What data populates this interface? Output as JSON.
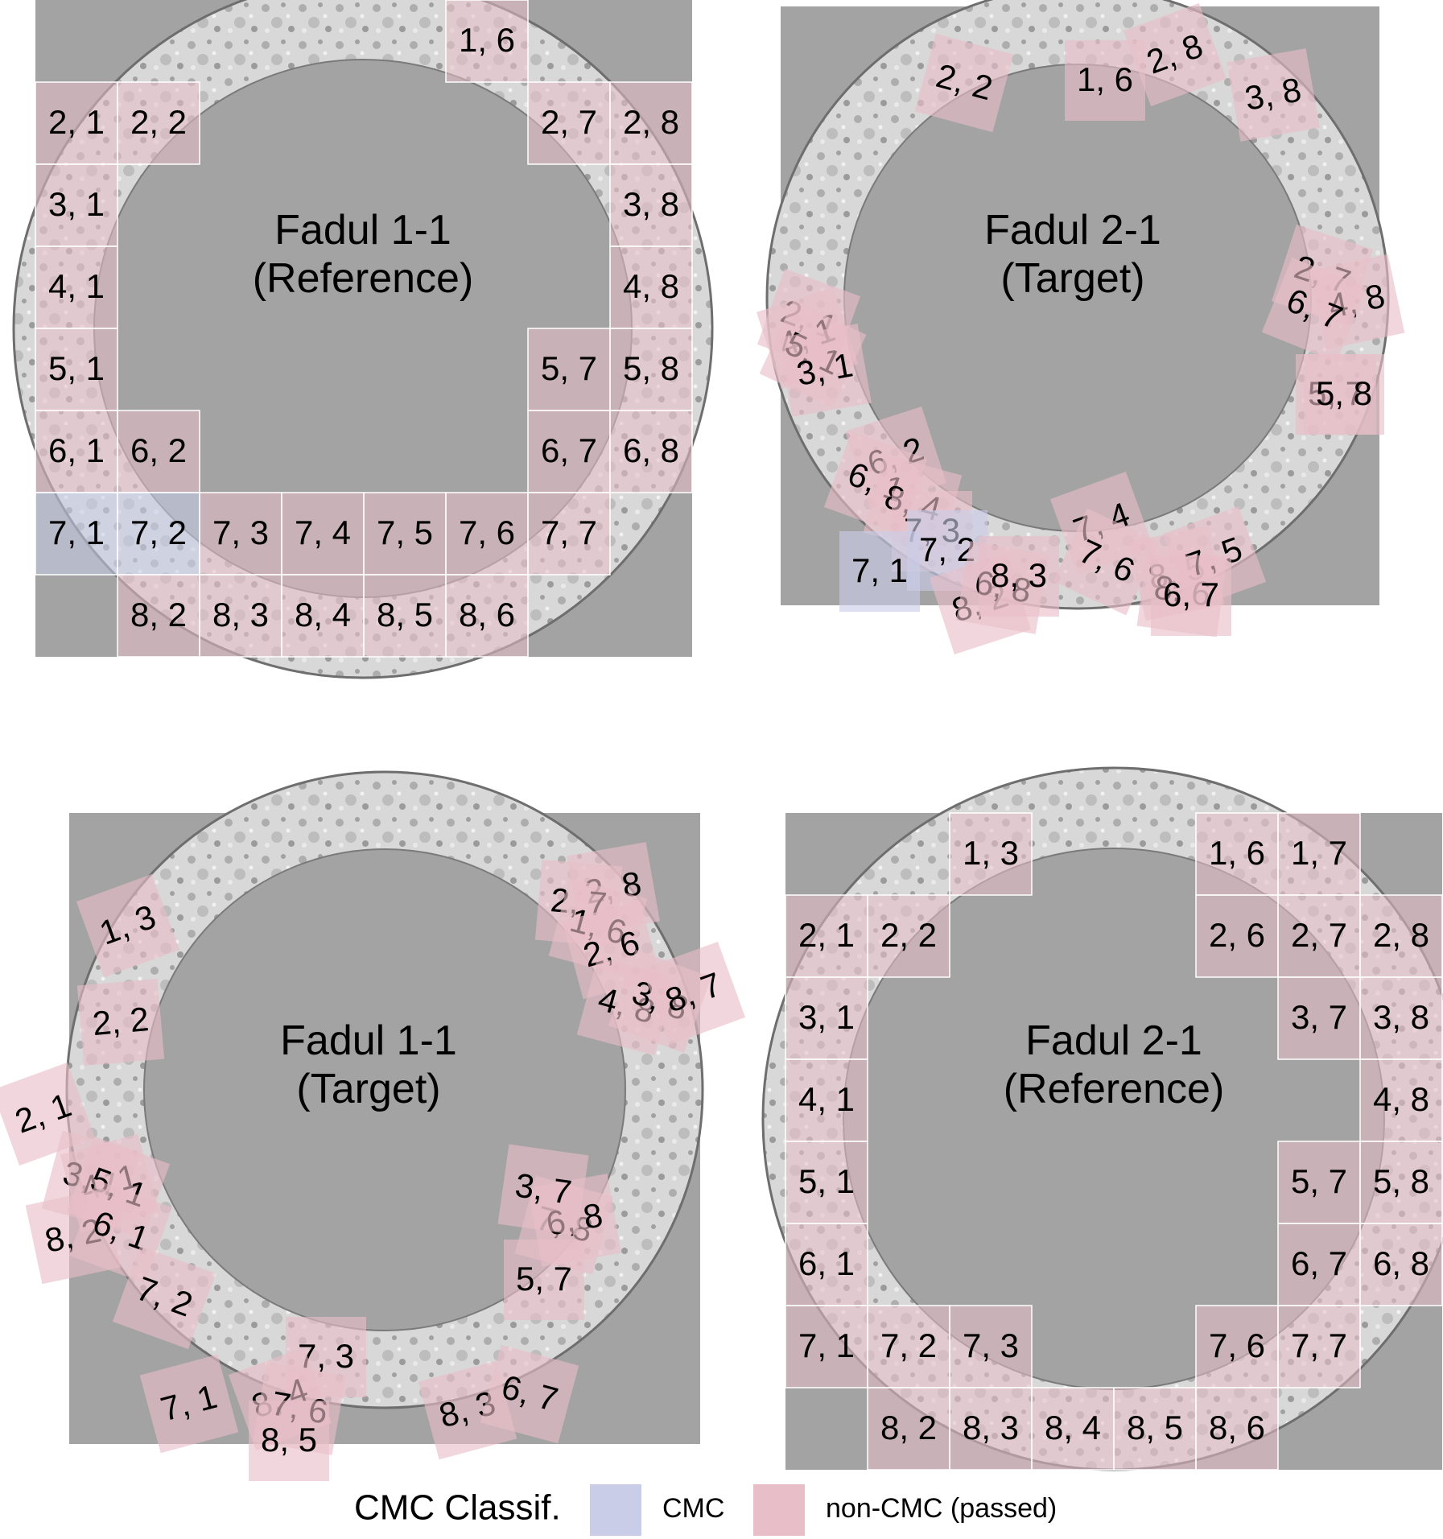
{
  "colors": {
    "background": "#a3a3a3",
    "cmc": "#c9cde8",
    "non_cmc": "#e8bfc8",
    "ring_light": "#dcdcdc",
    "ring_dark": "#6e6e6e",
    "cell_border": "#ffffff"
  },
  "panels": [
    {
      "id": "p1",
      "title_line1": "Fadul 1-1",
      "title_line2": "(Reference)",
      "type": "grid",
      "cells": [
        {
          "label": "1, 6",
          "class": "non-CMC",
          "row": 1,
          "col": 6
        },
        {
          "label": "2, 1",
          "class": "non-CMC",
          "row": 2,
          "col": 1
        },
        {
          "label": "2, 2",
          "class": "non-CMC",
          "row": 2,
          "col": 2
        },
        {
          "label": "2, 7",
          "class": "non-CMC",
          "row": 2,
          "col": 7
        },
        {
          "label": "2, 8",
          "class": "non-CMC",
          "row": 2,
          "col": 8
        },
        {
          "label": "3, 1",
          "class": "non-CMC",
          "row": 3,
          "col": 1
        },
        {
          "label": "3, 8",
          "class": "non-CMC",
          "row": 3,
          "col": 8
        },
        {
          "label": "4, 1",
          "class": "non-CMC",
          "row": 4,
          "col": 1
        },
        {
          "label": "4, 8",
          "class": "non-CMC",
          "row": 4,
          "col": 8
        },
        {
          "label": "5, 1",
          "class": "non-CMC",
          "row": 5,
          "col": 1
        },
        {
          "label": "5, 7",
          "class": "non-CMC",
          "row": 5,
          "col": 7
        },
        {
          "label": "5, 8",
          "class": "non-CMC",
          "row": 5,
          "col": 8
        },
        {
          "label": "6, 1",
          "class": "non-CMC",
          "row": 6,
          "col": 1
        },
        {
          "label": "6, 2",
          "class": "non-CMC",
          "row": 6,
          "col": 2
        },
        {
          "label": "6, 7",
          "class": "non-CMC",
          "row": 6,
          "col": 7
        },
        {
          "label": "6, 8",
          "class": "non-CMC",
          "row": 6,
          "col": 8
        },
        {
          "label": "7, 1",
          "class": "CMC",
          "row": 7,
          "col": 1
        },
        {
          "label": "7, 2",
          "class": "CMC",
          "row": 7,
          "col": 2
        },
        {
          "label": "7, 3",
          "class": "non-CMC",
          "row": 7,
          "col": 3
        },
        {
          "label": "7, 4",
          "class": "non-CMC",
          "row": 7,
          "col": 4
        },
        {
          "label": "7, 5",
          "class": "non-CMC",
          "row": 7,
          "col": 5
        },
        {
          "label": "7, 6",
          "class": "non-CMC",
          "row": 7,
          "col": 6
        },
        {
          "label": "7, 7",
          "class": "non-CMC",
          "row": 7,
          "col": 7
        },
        {
          "label": "8, 2",
          "class": "non-CMC",
          "row": 8,
          "col": 2
        },
        {
          "label": "8, 3",
          "class": "non-CMC",
          "row": 8,
          "col": 3
        },
        {
          "label": "8, 4",
          "class": "non-CMC",
          "row": 8,
          "col": 4
        },
        {
          "label": "8, 5",
          "class": "non-CMC",
          "row": 8,
          "col": 5
        },
        {
          "label": "8, 6",
          "class": "non-CMC",
          "row": 8,
          "col": 6
        }
      ]
    },
    {
      "id": "p2",
      "title_line1": "Fadul 2-1",
      "title_line2": "(Target)",
      "type": "scattered",
      "cells": [
        {
          "label": "2, 2",
          "class": "non-CMC"
        },
        {
          "label": "1, 6",
          "class": "non-CMC"
        },
        {
          "label": "2, 8",
          "class": "non-CMC"
        },
        {
          "label": "3, 8",
          "class": "non-CMC"
        },
        {
          "label": "2, 7",
          "class": "non-CMC"
        },
        {
          "label": "4, 8",
          "class": "non-CMC"
        },
        {
          "label": "5, 7",
          "class": "non-CMC"
        },
        {
          "label": "5, 8",
          "class": "non-CMC"
        },
        {
          "label": "6, 7",
          "class": "non-CMC"
        },
        {
          "label": "2, 1",
          "class": "non-CMC"
        },
        {
          "label": "4, 1",
          "class": "non-CMC"
        },
        {
          "label": "5, 1",
          "class": "non-CMC"
        },
        {
          "label": "3, 1",
          "class": "non-CMC"
        },
        {
          "label": "6, 2",
          "class": "non-CMC"
        },
        {
          "label": "6, 1",
          "class": "non-CMC"
        },
        {
          "label": "8, 4",
          "class": "non-CMC"
        },
        {
          "label": "7, 3",
          "class": "non-CMC"
        },
        {
          "label": "7, 1",
          "class": "CMC"
        },
        {
          "label": "7, 2",
          "class": "CMC"
        },
        {
          "label": "8, 2",
          "class": "non-CMC"
        },
        {
          "label": "6, 8",
          "class": "non-CMC"
        },
        {
          "label": "8, 3",
          "class": "non-CMC"
        },
        {
          "label": "7, 4",
          "class": "non-CMC"
        },
        {
          "label": "7, 6",
          "class": "non-CMC"
        },
        {
          "label": "8, 5",
          "class": "non-CMC"
        },
        {
          "label": "8, 6",
          "class": "non-CMC"
        },
        {
          "label": "7, 5",
          "class": "non-CMC"
        },
        {
          "label": "6, 7",
          "class": "non-CMC"
        }
      ]
    },
    {
      "id": "p3",
      "title_line1": "Fadul 1-1",
      "title_line2": "(Target)",
      "type": "scattered",
      "cells": [
        {
          "label": "1, 3",
          "class": "non-CMC"
        },
        {
          "label": "2, 2",
          "class": "non-CMC"
        },
        {
          "label": "2, 1",
          "class": "non-CMC"
        },
        {
          "label": "3, 1",
          "class": "non-CMC"
        },
        {
          "label": "4, 1",
          "class": "non-CMC"
        },
        {
          "label": "5, 1",
          "class": "non-CMC"
        },
        {
          "label": "8, 2",
          "class": "non-CMC"
        },
        {
          "label": "6, 1",
          "class": "non-CMC"
        },
        {
          "label": "7, 2",
          "class": "non-CMC"
        },
        {
          "label": "7, 1",
          "class": "non-CMC"
        },
        {
          "label": "7, 3",
          "class": "non-CMC"
        },
        {
          "label": "8, 4",
          "class": "non-CMC"
        },
        {
          "label": "7, 6",
          "class": "non-CMC"
        },
        {
          "label": "8, 5",
          "class": "non-CMC"
        },
        {
          "label": "8, 3",
          "class": "non-CMC"
        },
        {
          "label": "6, 7",
          "class": "non-CMC"
        },
        {
          "label": "5, 7",
          "class": "non-CMC"
        },
        {
          "label": "7, 8",
          "class": "non-CMC"
        },
        {
          "label": "6, 8",
          "class": "non-CMC"
        },
        {
          "label": "3, 7",
          "class": "non-CMC"
        },
        {
          "label": "2, 8",
          "class": "non-CMC"
        },
        {
          "label": "2, 7",
          "class": "non-CMC"
        },
        {
          "label": "1, 6",
          "class": "non-CMC"
        },
        {
          "label": "2, 6",
          "class": "non-CMC"
        },
        {
          "label": "4, 8",
          "class": "non-CMC"
        },
        {
          "label": "3, 8",
          "class": "non-CMC"
        },
        {
          "label": "8, 7",
          "class": "non-CMC"
        }
      ]
    },
    {
      "id": "p4",
      "title_line1": "Fadul 2-1",
      "title_line2": "(Reference)",
      "type": "grid",
      "cells": [
        {
          "label": "1, 3",
          "class": "non-CMC",
          "row": 1,
          "col": 3
        },
        {
          "label": "1, 6",
          "class": "non-CMC",
          "row": 1,
          "col": 6
        },
        {
          "label": "1, 7",
          "class": "non-CMC",
          "row": 1,
          "col": 7
        },
        {
          "label": "2, 1",
          "class": "non-CMC",
          "row": 2,
          "col": 1
        },
        {
          "label": "2, 2",
          "class": "non-CMC",
          "row": 2,
          "col": 2
        },
        {
          "label": "2, 6",
          "class": "non-CMC",
          "row": 2,
          "col": 6
        },
        {
          "label": "2, 7",
          "class": "non-CMC",
          "row": 2,
          "col": 7
        },
        {
          "label": "2, 8",
          "class": "non-CMC",
          "row": 2,
          "col": 8
        },
        {
          "label": "3, 1",
          "class": "non-CMC",
          "row": 3,
          "col": 1
        },
        {
          "label": "3, 7",
          "class": "non-CMC",
          "row": 3,
          "col": 7
        },
        {
          "label": "3, 8",
          "class": "non-CMC",
          "row": 3,
          "col": 8
        },
        {
          "label": "4, 1",
          "class": "non-CMC",
          "row": 4,
          "col": 1
        },
        {
          "label": "4, 8",
          "class": "non-CMC",
          "row": 4,
          "col": 8
        },
        {
          "label": "5, 1",
          "class": "non-CMC",
          "row": 5,
          "col": 1
        },
        {
          "label": "5, 7",
          "class": "non-CMC",
          "row": 5,
          "col": 7
        },
        {
          "label": "5, 8",
          "class": "non-CMC",
          "row": 5,
          "col": 8
        },
        {
          "label": "6, 1",
          "class": "non-CMC",
          "row": 6,
          "col": 1
        },
        {
          "label": "6, 7",
          "class": "non-CMC",
          "row": 6,
          "col": 7
        },
        {
          "label": "6, 8",
          "class": "non-CMC",
          "row": 6,
          "col": 8
        },
        {
          "label": "7, 1",
          "class": "non-CMC",
          "row": 7,
          "col": 1
        },
        {
          "label": "7, 2",
          "class": "non-CMC",
          "row": 7,
          "col": 2
        },
        {
          "label": "7, 3",
          "class": "non-CMC",
          "row": 7,
          "col": 3
        },
        {
          "label": "7, 6",
          "class": "non-CMC",
          "row": 7,
          "col": 6
        },
        {
          "label": "7, 7",
          "class": "non-CMC",
          "row": 7,
          "col": 7
        },
        {
          "label": "8, 2",
          "class": "non-CMC",
          "row": 8,
          "col": 2
        },
        {
          "label": "8, 3",
          "class": "non-CMC",
          "row": 8,
          "col": 3
        },
        {
          "label": "8, 4",
          "class": "non-CMC",
          "row": 8,
          "col": 4
        },
        {
          "label": "8, 5",
          "class": "non-CMC",
          "row": 8,
          "col": 5
        },
        {
          "label": "8, 6",
          "class": "non-CMC",
          "row": 8,
          "col": 6
        }
      ]
    }
  ],
  "legend": {
    "title": "CMC Classif.",
    "items": [
      {
        "label": "CMC",
        "class": "CMC"
      },
      {
        "label": "non-CMC (passed)",
        "class": "non-CMC"
      }
    ]
  }
}
